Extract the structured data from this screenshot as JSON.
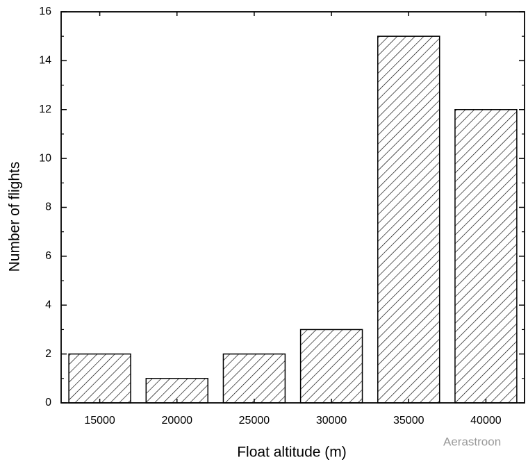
{
  "chart_data": {
    "type": "bar",
    "x_label": "Float altitude (m)",
    "y_label": "Number of flights",
    "categories": [
      "15000",
      "20000",
      "25000",
      "30000",
      "35000",
      "40000"
    ],
    "values": [
      2,
      1,
      2,
      3,
      15,
      12
    ],
    "color": "#000000",
    "hatch": "backslash",
    "ylim": [
      0,
      16
    ],
    "yticks": [
      0,
      2,
      4,
      6,
      8,
      10,
      12,
      14,
      16
    ],
    "yminorticks": [
      1,
      3,
      5,
      7,
      9,
      11,
      13,
      15
    ],
    "grid": false,
    "watermark": "Aerastroon"
  }
}
